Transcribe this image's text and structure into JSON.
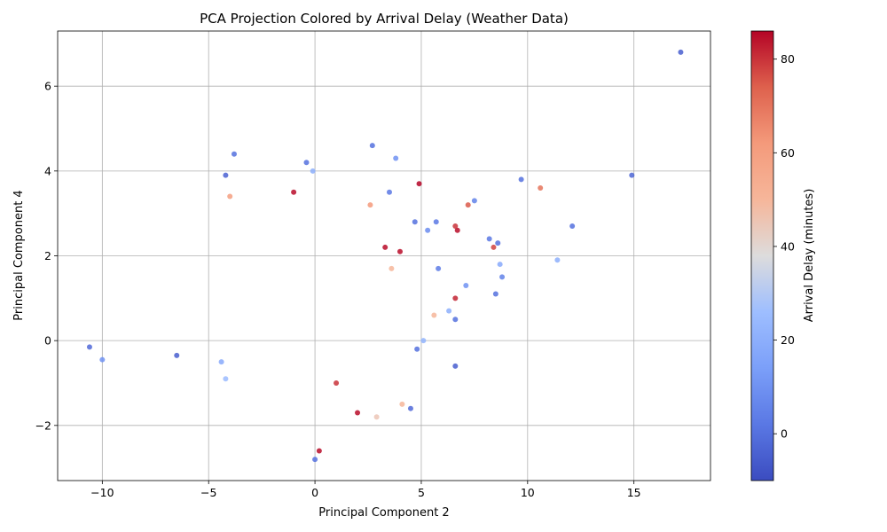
{
  "chart_data": {
    "type": "scatter",
    "title": "PCA Projection Colored by Arrival Delay (Weather Data)",
    "xlabel": "Principal Component 2",
    "ylabel": "Principal Component 4",
    "xlim": [
      -12.1,
      18.6
    ],
    "ylim": [
      -3.3,
      7.3
    ],
    "xticks": [
      -10,
      -5,
      0,
      5,
      10,
      15
    ],
    "yticks": [
      -2,
      0,
      2,
      4,
      6
    ],
    "xtick_labels": [
      "−10",
      "−5",
      "0",
      "5",
      "10",
      "15"
    ],
    "ytick_labels": [
      "−2",
      "0",
      "2",
      "4",
      "6"
    ],
    "grid": true,
    "colormap": "coolwarm",
    "colorbar": {
      "label": "Arrival Delay (minutes)",
      "range": [
        -10,
        86
      ],
      "ticks": [
        0,
        20,
        40,
        60,
        80
      ],
      "tick_labels": [
        "0",
        "20",
        "40",
        "60",
        "80"
      ]
    },
    "points": [
      {
        "x": 17.2,
        "y": 6.8,
        "c": -5
      },
      {
        "x": 14.9,
        "y": 3.9,
        "c": -3
      },
      {
        "x": 12.1,
        "y": 2.7,
        "c": 0
      },
      {
        "x": 11.4,
        "y": 1.9,
        "c": 20
      },
      {
        "x": 10.6,
        "y": 3.6,
        "c": 70
      },
      {
        "x": 9.7,
        "y": 3.8,
        "c": 0
      },
      {
        "x": 8.8,
        "y": 1.5,
        "c": 5
      },
      {
        "x": 8.7,
        "y": 1.8,
        "c": 18
      },
      {
        "x": 8.6,
        "y": 2.3,
        "c": 0
      },
      {
        "x": 8.5,
        "y": 1.1,
        "c": 0
      },
      {
        "x": 8.4,
        "y": 2.2,
        "c": 78
      },
      {
        "x": 8.2,
        "y": 2.4,
        "c": 2
      },
      {
        "x": 7.5,
        "y": 3.3,
        "c": 5
      },
      {
        "x": 7.2,
        "y": 3.2,
        "c": 75
      },
      {
        "x": 7.1,
        "y": 1.3,
        "c": 10
      },
      {
        "x": 6.7,
        "y": 2.6,
        "c": 85
      },
      {
        "x": 6.6,
        "y": 2.7,
        "c": 80
      },
      {
        "x": 6.6,
        "y": 1.0,
        "c": 82
      },
      {
        "x": 6.6,
        "y": 0.5,
        "c": 0
      },
      {
        "x": 6.6,
        "y": -0.6,
        "c": -5
      },
      {
        "x": 6.3,
        "y": 0.7,
        "c": 20
      },
      {
        "x": 5.8,
        "y": 1.7,
        "c": 3
      },
      {
        "x": 5.7,
        "y": 2.8,
        "c": 2
      },
      {
        "x": 5.6,
        "y": 0.6,
        "c": 50
      },
      {
        "x": 5.3,
        "y": 2.6,
        "c": 8
      },
      {
        "x": 5.1,
        "y": 0.0,
        "c": 22
      },
      {
        "x": 4.9,
        "y": 3.7,
        "c": 86
      },
      {
        "x": 4.8,
        "y": -0.2,
        "c": 0
      },
      {
        "x": 4.7,
        "y": 2.8,
        "c": 0
      },
      {
        "x": 4.5,
        "y": -1.6,
        "c": -2
      },
      {
        "x": 4.1,
        "y": -1.5,
        "c": 50
      },
      {
        "x": 4.0,
        "y": 2.1,
        "c": 85
      },
      {
        "x": 3.8,
        "y": 4.3,
        "c": 10
      },
      {
        "x": 3.6,
        "y": 1.7,
        "c": 50
      },
      {
        "x": 3.5,
        "y": 3.5,
        "c": 2
      },
      {
        "x": 3.3,
        "y": 2.2,
        "c": 85
      },
      {
        "x": 2.9,
        "y": -1.8,
        "c": 45
      },
      {
        "x": 2.7,
        "y": 4.6,
        "c": 0
      },
      {
        "x": 2.6,
        "y": 3.2,
        "c": 62
      },
      {
        "x": -10.6,
        "y": -0.15,
        "c": -2
      },
      {
        "x": -10.0,
        "y": -0.45,
        "c": 10
      },
      {
        "x": -6.5,
        "y": -0.35,
        "c": -5
      },
      {
        "x": -4.4,
        "y": -0.5,
        "c": 18
      },
      {
        "x": -4.2,
        "y": -0.9,
        "c": 25
      },
      {
        "x": -4.0,
        "y": 3.4,
        "c": 60
      },
      {
        "x": -3.8,
        "y": 4.4,
        "c": 0
      },
      {
        "x": -4.2,
        "y": 3.9,
        "c": -4
      },
      {
        "x": -0.1,
        "y": 4.0,
        "c": 20
      },
      {
        "x": -0.4,
        "y": 4.2,
        "c": 0
      },
      {
        "x": 0.0,
        "y": -2.8,
        "c": 0
      },
      {
        "x": 0.2,
        "y": -2.6,
        "c": 85
      },
      {
        "x": -1.0,
        "y": 3.5,
        "c": 85
      },
      {
        "x": 2.0,
        "y": -1.7,
        "c": 85
      },
      {
        "x": 1.0,
        "y": -1.0,
        "c": 80
      }
    ]
  }
}
